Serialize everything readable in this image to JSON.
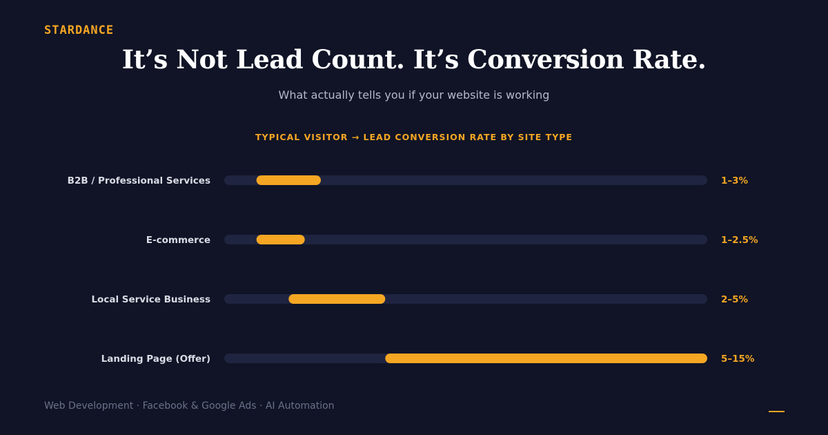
{
  "brand": "STARDANCE",
  "title": "It’s Not Lead Count. It’s Conversion Rate.",
  "subtitle": "What actually tells you if your website is working",
  "footer": "Web Development · Facebook & Google Ads · AI Automation",
  "colors": {
    "background": "#101426",
    "accent": "#f5a623",
    "track": "#1f2440",
    "label": "#d9dbe5"
  },
  "chart_data": {
    "type": "bar",
    "orientation": "horizontal-range",
    "title": "TYPICAL VISITOR → LEAD CONVERSION RATE BY SITE TYPE",
    "xlim": [
      0,
      15
    ],
    "grid": false,
    "categories": [
      "B2B / Professional Services",
      "E-commerce",
      "Local Service Business",
      "Landing Page (Offer)"
    ],
    "ranges": [
      [
        1,
        3
      ],
      [
        1,
        2.5
      ],
      [
        2,
        5
      ],
      [
        5,
        15
      ]
    ],
    "value_labels": [
      "1–3%",
      "1–2.5%",
      "2–5%",
      "5–15%"
    ]
  }
}
